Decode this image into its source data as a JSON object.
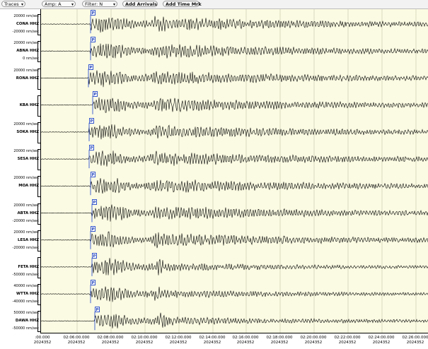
{
  "toolbar": {
    "traces_label": "Traces",
    "amp_label": "Amp: A",
    "filter_label": "Filter: N",
    "add_arrivals_label": "Add Arrivals",
    "add_time_mrk_label": "Add Time Mrk"
  },
  "traces": [
    {
      "name": "CONA HHZ",
      "upper": "20000 nm/sec",
      "lower": "-20000 nm/sec",
      "pick": "P"
    },
    {
      "name": "ABNA HHZ",
      "upper": "20000 nm/sec",
      "lower": "0 nm/sec",
      "pick": "P"
    },
    {
      "name": "RONA HHZ",
      "upper": "20000 nm/sec",
      "lower": "",
      "pick": "P"
    },
    {
      "name": "KBA HHZ",
      "upper": "",
      "lower": "",
      "pick": "P"
    },
    {
      "name": "SOKA HHZ",
      "upper": "20000 nm/sec",
      "lower": "",
      "pick": "P"
    },
    {
      "name": "SESA HHZ",
      "upper": "20000 nm/sec",
      "lower": "",
      "pick": "P"
    },
    {
      "name": "MOA HHZ",
      "upper": "20000 nm/sec",
      "lower": "",
      "pick": "P"
    },
    {
      "name": "ABTA HHZ",
      "upper": "20000 nm/sec",
      "lower": "-20000 nm/sec",
      "pick": "P"
    },
    {
      "name": "LESA HHZ",
      "upper": "20000 nm/sec",
      "lower": "-20000 nm/sec",
      "pick": "P"
    },
    {
      "name": "FETA HHZ",
      "upper": "",
      "lower": "-50000 nm/sec",
      "pick": "P"
    },
    {
      "name": "WTTA HHZ",
      "upper": "40000 nm/sec",
      "lower": "-40000 nm/sec",
      "pick": "P"
    },
    {
      "name": "DAWA HHZ",
      "upper": "50000 nm/sec",
      "lower": "-50000 nm/sec",
      "pick": "P"
    }
  ],
  "time_axis": {
    "date_label": "2024352",
    "ticks": [
      ":00.000",
      "02:06:00.000",
      "02:08:00.000",
      "02:10:00.000",
      "02:12:00.000",
      "02:14:00.000",
      "02:16:00.000",
      "02:18:00.000",
      "02:20:00.000",
      "02:22:00.000",
      "02:24:00.000",
      "02:26:00.000"
    ]
  },
  "colors": {
    "plot_background": "#fbfbe3",
    "gridline": "#c9c9b0",
    "trace": "#000000",
    "pick_marker": "#3355cc"
  }
}
